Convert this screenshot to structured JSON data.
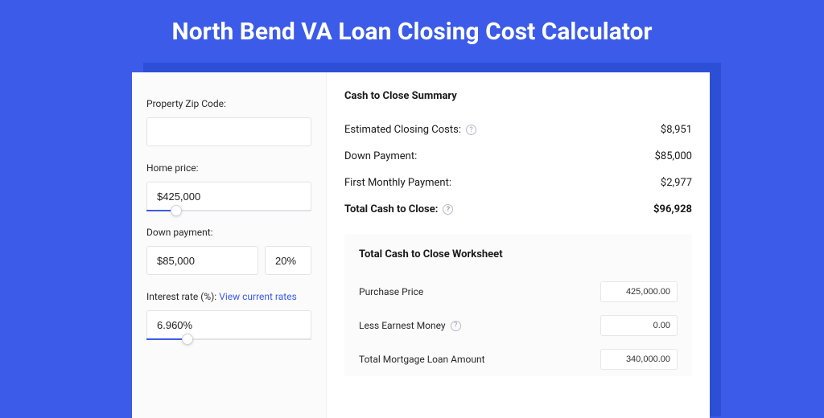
{
  "colors": {
    "page_bg": "#3b5be8",
    "shadow_bg": "#2d4fd6",
    "panel_bg": "#ffffff",
    "left_bg": "#fbfbfc",
    "border": "#e2e3e7",
    "link": "#3b5be8",
    "text": "#1a1a1a"
  },
  "title": "North Bend VA Loan Closing Cost Calculator",
  "form": {
    "zip": {
      "label": "Property Zip Code:",
      "value": ""
    },
    "home_price": {
      "label": "Home price:",
      "value": "$425,000",
      "slider_pct": 18
    },
    "down_payment": {
      "label": "Down payment:",
      "value": "$85,000",
      "pct": "20%",
      "slider_pct": 0
    },
    "interest": {
      "label_prefix": "Interest rate (%): ",
      "link_text": "View current rates",
      "value": "6.960%",
      "slider_pct": 25
    }
  },
  "summary": {
    "title": "Cash to Close Summary",
    "rows": [
      {
        "label": "Estimated Closing Costs:",
        "help": true,
        "value": "$8,951",
        "bold": false
      },
      {
        "label": "Down Payment:",
        "help": false,
        "value": "$85,000",
        "bold": false
      },
      {
        "label": "First Monthly Payment:",
        "help": false,
        "value": "$2,977",
        "bold": false
      },
      {
        "label": "Total Cash to Close:",
        "help": true,
        "value": "$96,928",
        "bold": true
      }
    ]
  },
  "worksheet": {
    "title": "Total Cash to Close Worksheet",
    "rows": [
      {
        "label": "Purchase Price",
        "help": false,
        "value": "425,000.00"
      },
      {
        "label": "Less Earnest Money",
        "help": true,
        "value": "0.00"
      },
      {
        "label": "Total Mortgage Loan Amount",
        "help": false,
        "value": "340,000.00"
      }
    ]
  }
}
